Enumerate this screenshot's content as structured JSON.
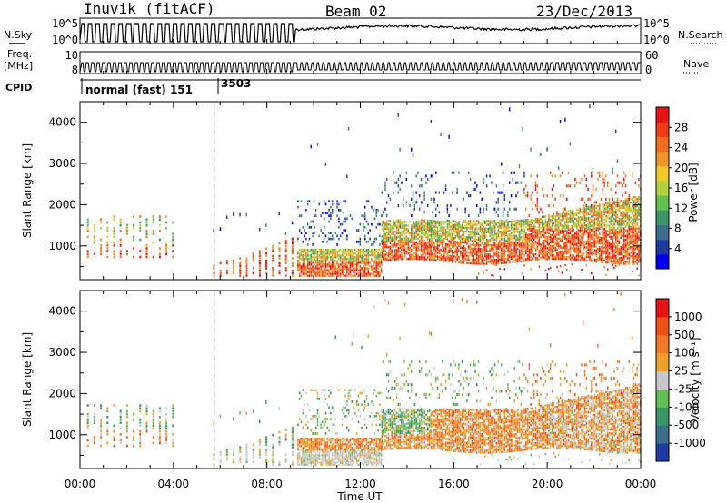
{
  "header": {
    "radar": "Inuvik (fitACF)",
    "beam": "Beam 02",
    "date": "23/Dec/2013"
  },
  "strip_labels": {
    "nsky": "N.Sky",
    "freq": "Freq.",
    "freq_unit": "[MHz]",
    "cpid": "CPID",
    "nsearch": "N.Search",
    "nave": "Nave",
    "nsky_ticks": [
      "10^5",
      "10^0"
    ],
    "nsearch_ticks": [
      "10^5",
      "10^0"
    ],
    "freq_ticks": [
      "10",
      "8"
    ],
    "nave_ticks": [
      "60",
      "0"
    ]
  },
  "cpid_labels": [
    "normal (fast) 151",
    "3503"
  ],
  "chart_data": [
    {
      "type": "heatmap",
      "name": "power",
      "ylabel": "Slant Range [km]",
      "xlabel": "",
      "colorbar_label": "Power [dB]",
      "colorbar_ticks": [
        "28",
        "24",
        "20",
        "16",
        "12",
        "8",
        "4"
      ],
      "colorbar_colors": [
        "#0000f0",
        "#1e3ca0",
        "#3c6e8c",
        "#3c9664",
        "#64be50",
        "#b4d23c",
        "#f0c828",
        "#f09628",
        "#f06e1e",
        "#f03c14",
        "#e61414"
      ],
      "y_ticks": [
        "4000",
        "3000",
        "2000",
        "1000"
      ],
      "ylim": [
        180,
        4500
      ]
    },
    {
      "type": "heatmap",
      "name": "velocity",
      "ylabel": "Slant Range [km]",
      "xlabel": "Time UT",
      "colorbar_label": "Velocity [m s⁻¹]",
      "colorbar_ticks": [
        "1000",
        "500",
        "100",
        "25",
        "-25",
        "-100",
        "-500",
        "-1000"
      ],
      "colorbar_colors": [
        "#1e3ca0",
        "#3c6e8c",
        "#3c9664",
        "#64be50",
        "#c8c8c8",
        "#f0a028",
        "#f07828",
        "#f05014",
        "#e61414"
      ],
      "y_ticks": [
        "4000",
        "3000",
        "2000",
        "1000"
      ],
      "x_ticks": [
        "00:00",
        "04:00",
        "08:00",
        "12:00",
        "16:00",
        "20:00",
        "00:00"
      ],
      "ylim": [
        180,
        4500
      ]
    }
  ]
}
